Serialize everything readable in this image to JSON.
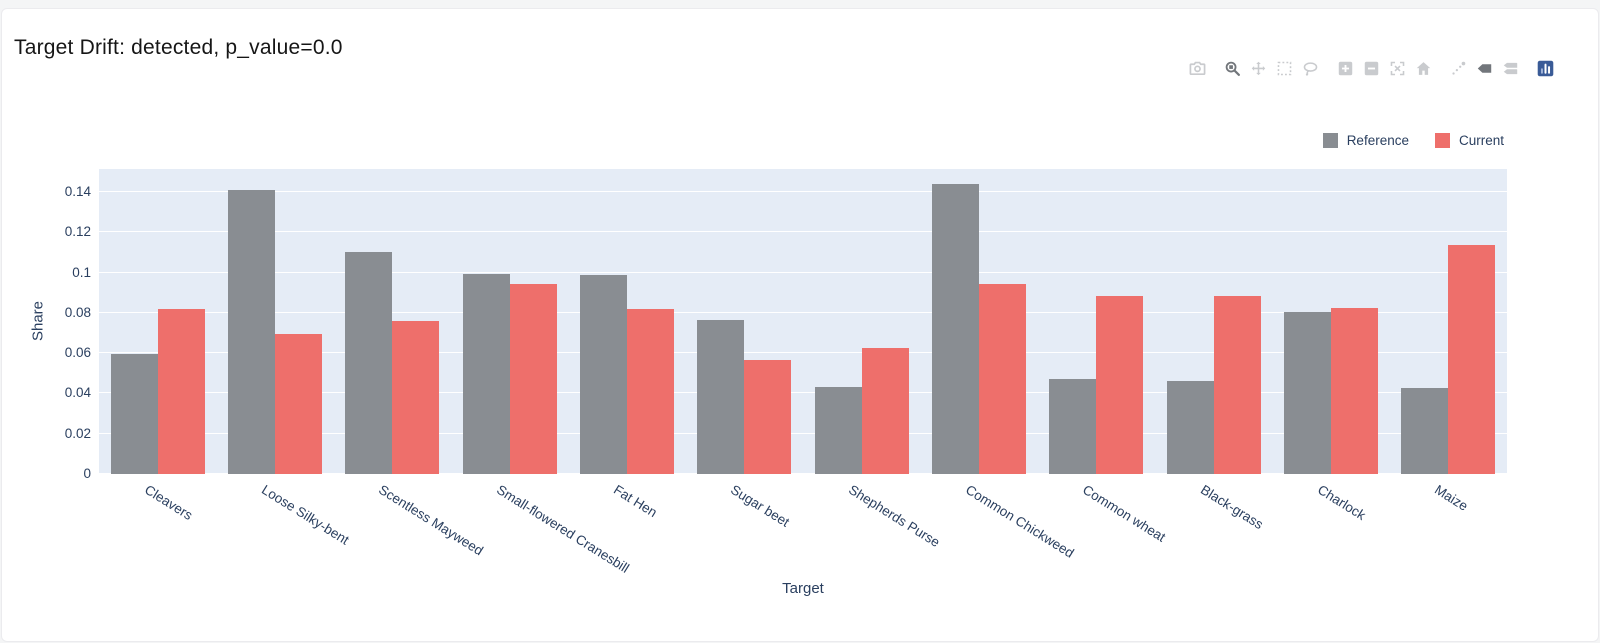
{
  "header": {
    "title": "Target Drift: detected, p_value=0.0"
  },
  "modebar": {
    "groups": [
      [
        {
          "name": "download-png",
          "active": false
        }
      ],
      [
        {
          "name": "zoom",
          "active": true
        },
        {
          "name": "pan",
          "active": false
        },
        {
          "name": "box-select",
          "active": false
        },
        {
          "name": "lasso-select",
          "active": false
        }
      ],
      [
        {
          "name": "zoom-in",
          "active": false
        },
        {
          "name": "zoom-out",
          "active": false
        },
        {
          "name": "autoscale",
          "active": false
        },
        {
          "name": "reset-axes",
          "active": false
        }
      ],
      [
        {
          "name": "toggle-spikelines",
          "active": false
        },
        {
          "name": "hover-closest",
          "active": true
        },
        {
          "name": "hover-compare",
          "active": false
        }
      ],
      [
        {
          "name": "plotly-logo",
          "active": false
        }
      ]
    ]
  },
  "legend": {
    "items": [
      {
        "label": "Reference",
        "color": "#898d92"
      },
      {
        "label": "Current",
        "color": "#ee6f6b"
      }
    ]
  },
  "chart_data": {
    "type": "bar",
    "title": "Target Drift: detected, p_value=0.0",
    "xlabel": "Target",
    "ylabel": "Share",
    "categories": [
      "Cleavers",
      "Loose Silky-bent",
      "Scentless Mayweed",
      "Small-flowered Cranesbill",
      "Fat Hen",
      "Sugar beet",
      "Shepherds Purse",
      "Common Chickweed",
      "Common wheat",
      "Black-grass",
      "Charlock",
      "Maize"
    ],
    "series": [
      {
        "name": "Reference",
        "color": "#898d92",
        "values": [
          0.0595,
          0.141,
          0.11,
          0.0995,
          0.099,
          0.0765,
          0.0432,
          0.144,
          0.047,
          0.0463,
          0.0805,
          0.0425
        ]
      },
      {
        "name": "Current",
        "color": "#ee6f6b",
        "values": [
          0.082,
          0.0693,
          0.076,
          0.0945,
          0.082,
          0.0565,
          0.0627,
          0.0945,
          0.0885,
          0.0885,
          0.0822,
          0.1135
        ]
      }
    ],
    "ylim": [
      0,
      0.1514
    ],
    "yticks": [
      0,
      0.02,
      0.04,
      0.06,
      0.08,
      0.1,
      0.12,
      0.14
    ],
    "grid": true,
    "legend_position": "top-right",
    "plot_bg_color": "#e5ecf6",
    "grid_color": "#ffffff",
    "text_color": "#2a3f5f"
  }
}
